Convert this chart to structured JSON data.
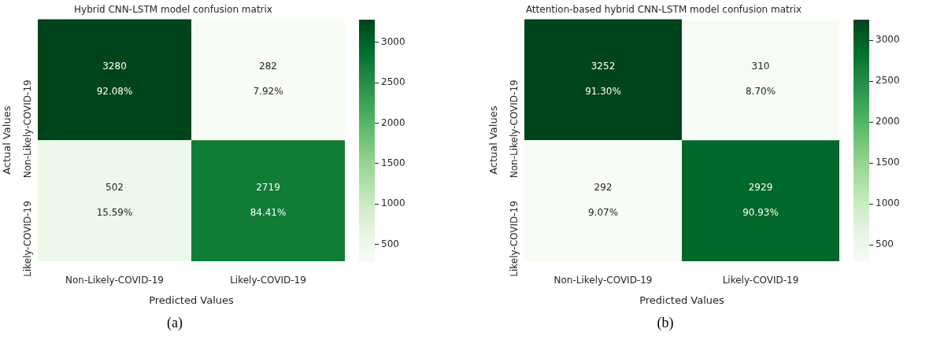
{
  "chart_data": [
    {
      "type": "heatmap",
      "title": "Hybrid CNN-LSTM model confusion matrix",
      "xlabel": "Predicted Values",
      "ylabel": "Actual Values",
      "categories": [
        "Non-Likely-COVID-19",
        "Likely-COVID-19"
      ],
      "y_categories": [
        "Non-Likely-COVID-19",
        "Likely-COVID-19"
      ],
      "cells": [
        [
          3280,
          282
        ],
        [
          502,
          2719
        ]
      ],
      "cell_labels": [
        [
          "3280\n92.08%",
          "282\n7.92%"
        ],
        [
          "502\n15.59%",
          "2719\n84.41%"
        ]
      ],
      "clim": [
        282,
        3280
      ],
      "cticks": [
        500,
        1000,
        1500,
        2000,
        2500,
        3000
      ],
      "annotations": [
        "(a)"
      ]
    },
    {
      "type": "heatmap",
      "title": "Attention-based hybrid CNN-LSTM model confusion matrix",
      "xlabel": "Predicted Values",
      "ylabel": "Actual Values",
      "categories": [
        "Non-Likely-COVID-19",
        "Likely-COVID-19"
      ],
      "y_categories": [
        "Non-Likely-COVID-19",
        "Likely-COVID-19"
      ],
      "cells": [
        [
          3252,
          310
        ],
        [
          292,
          2929
        ]
      ],
      "cell_labels": [
        [
          "3252\n91.30%",
          "310\n8.70%"
        ],
        [
          "292\n9.07%",
          "2929\n90.93%"
        ]
      ],
      "clim": [
        292,
        3252
      ],
      "cticks": [
        500,
        1000,
        1500,
        2000,
        2500,
        3000
      ],
      "annotations": [
        "(b)"
      ]
    }
  ]
}
